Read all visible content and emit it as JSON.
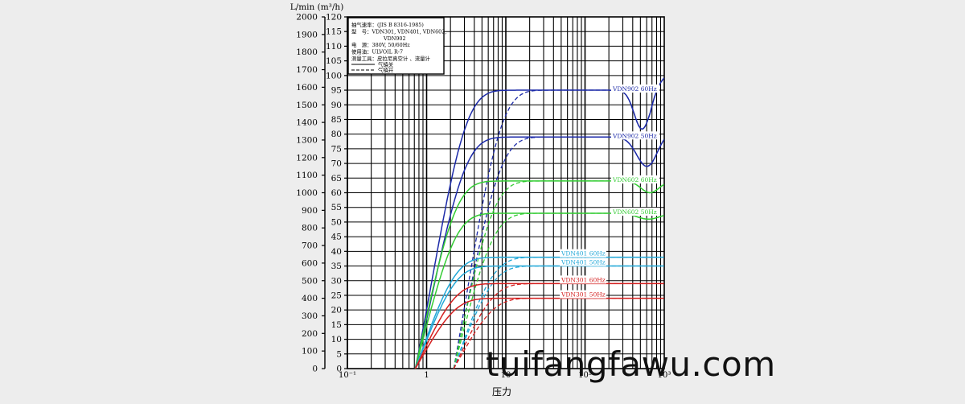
{
  "chart_data": {
    "type": "line",
    "title": "",
    "xlabel": "压力",
    "ylabel_left": "L/min (m³/h)",
    "x_scale": "log",
    "xlim": [
      0.1,
      1000
    ],
    "x_ticks": [
      "10⁻¹",
      "1",
      "10",
      "10²",
      "10³"
    ],
    "ylim_left": [
      0,
      2000
    ],
    "y_ticks_left": [
      0,
      100,
      200,
      300,
      400,
      500,
      600,
      700,
      800,
      900,
      1000,
      1100,
      1200,
      1300,
      1400,
      1500,
      1600,
      1700,
      1800,
      1900,
      2000
    ],
    "ylim_right": [
      0,
      120
    ],
    "y_ticks_right": [
      0,
      5,
      10,
      15,
      20,
      25,
      30,
      35,
      40,
      45,
      50,
      55,
      60,
      65,
      70,
      75,
      80,
      85,
      90,
      95,
      100,
      105,
      110,
      115,
      120
    ],
    "grid": true,
    "legend": {
      "position": "top-left",
      "lines": [
        "抽气速率：(JIS B 8316-1985)",
        "型　号：VDN301, VDN401, VDN602,",
        "VDN902",
        "电　源：380V, 50/60Hz",
        "使用油：ULVOIL R-7",
        "测量工具：皮拉尼真空计 、流量计"
      ],
      "items": [
        {
          "label": "气镇关",
          "style": "solid"
        },
        {
          "label": "气镇开",
          "style": "dashed"
        }
      ]
    },
    "series": [
      {
        "name": "VDN902  60Hz",
        "color": "#1c2aa8",
        "plateau": 95,
        "kind": "902-60"
      },
      {
        "name": "VDN902  50Hz",
        "color": "#1c2aa8",
        "plateau": 79,
        "kind": "902-50"
      },
      {
        "name": "VDN602  60Hz",
        "color": "#33cc33",
        "plateau": 64,
        "kind": "602-60"
      },
      {
        "name": "VDN602  50Hz",
        "color": "#33cc33",
        "plateau": 53,
        "kind": "602-50"
      },
      {
        "name": "VDN401  60Hz",
        "color": "#22a8d8",
        "plateau": 38,
        "kind": "flat"
      },
      {
        "name": "VDN401  50Hz",
        "color": "#22a8d8",
        "plateau": 35,
        "kind": "flat"
      },
      {
        "name": "VDN301  60Hz",
        "color": "#d42020",
        "plateau": 29,
        "kind": "flat"
      },
      {
        "name": "VDN301  50Hz",
        "color": "#d42020",
        "plateau": 24,
        "kind": "flat"
      }
    ]
  },
  "watermark": "tuifangfawu.com"
}
